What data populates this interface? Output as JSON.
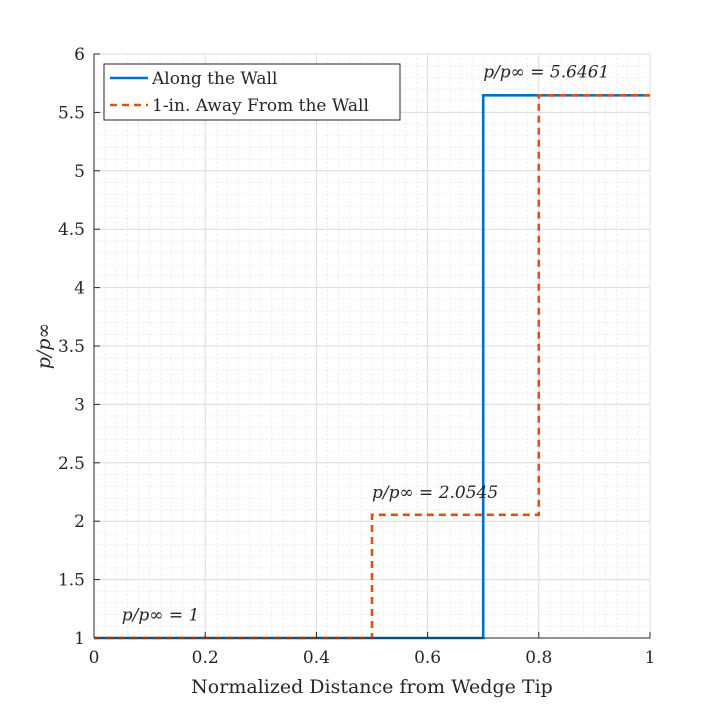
{
  "chart_data": {
    "type": "line",
    "title": "",
    "xlabel": "Normalized Distance from Wedge Tip",
    "ylabel": "p/p∞",
    "xlim": [
      0,
      1
    ],
    "ylim": [
      1,
      6
    ],
    "x_ticks": [
      0,
      0.2,
      0.4,
      0.6,
      0.8,
      1
    ],
    "x_tick_labels": [
      "0",
      "0.2",
      "0.4",
      "0.6",
      "0.8",
      "1"
    ],
    "y_ticks": [
      1,
      1.5,
      2,
      2.5,
      3,
      3.5,
      4,
      4.5,
      5,
      5.5,
      6
    ],
    "y_tick_labels": [
      "1",
      "1.5",
      "2",
      "2.5",
      "3",
      "3.5",
      "4",
      "4.5",
      "5",
      "5.5",
      "6"
    ],
    "grid": true,
    "minor_grid": true,
    "legend_position": "top-left",
    "series": [
      {
        "name": "Along the Wall",
        "color": "#0072BD",
        "style": "solid",
        "x": [
          0,
          0.7,
          0.7,
          1
        ],
        "y": [
          1,
          1,
          5.6461,
          5.6461
        ]
      },
      {
        "name": "1-in. Away From the Wall",
        "color": "#D95319",
        "style": "dashed",
        "x": [
          0,
          0.5,
          0.5,
          0.8,
          0.8,
          1
        ],
        "y": [
          1,
          1,
          2.0545,
          2.0545,
          5.6461,
          5.6461
        ]
      }
    ],
    "annotations": [
      {
        "text": "p/p∞ = 1",
        "x": 0.05,
        "y": 1.15
      },
      {
        "text": "p/p∞ = 2.0545",
        "x": 0.5,
        "y": 2.2
      },
      {
        "text": "p/p∞ = 5.6461",
        "x": 0.7,
        "y": 5.8
      }
    ]
  }
}
